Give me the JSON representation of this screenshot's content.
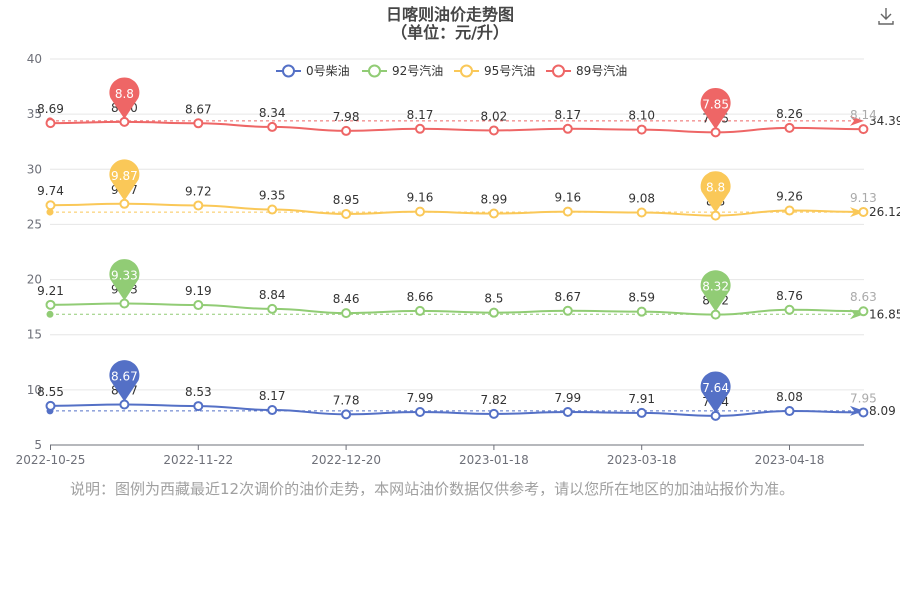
{
  "chart_data": {
    "type": "line",
    "title": "日喀则油价走势图",
    "subtitle": "（单位：元/升）",
    "x_tick_labels": [
      "2022-10-25",
      "2022-11-22",
      "2022-12-20",
      "2023-01-18",
      "2023-03-18",
      "2023-04-18"
    ],
    "y_tick_labels": [
      "5",
      "10",
      "15",
      "20",
      "25",
      "30",
      "35",
      "40"
    ],
    "ylim": [
      5,
      40
    ],
    "grid": true,
    "legend_position": "top",
    "series": [
      {
        "name": "0号柴油",
        "color": "#5470c6",
        "offset": 0,
        "values": [
          8.55,
          8.67,
          8.53,
          8.17,
          7.78,
          7.99,
          7.82,
          7.99,
          7.91,
          7.64,
          8.08,
          7.95
        ],
        "labels": [
          "8.55",
          "8.67",
          "8.53",
          "8.17",
          "7.78",
          "7.99",
          "7.82",
          "7.99",
          "7.91",
          "7.64",
          "8.08",
          "7.95"
        ],
        "max": "8.67",
        "min": "7.64",
        "average": "8.09"
      },
      {
        "name": "92号汽油",
        "color": "#91cc75",
        "offset": 8.5,
        "values": [
          9.21,
          9.33,
          9.19,
          8.84,
          8.46,
          8.66,
          8.5,
          8.67,
          8.59,
          8.32,
          8.76,
          8.63
        ],
        "labels": [
          "9.21",
          "9.33",
          "9.19",
          "8.84",
          "8.46",
          "8.66",
          "8.5",
          "8.67",
          "8.59",
          "8.32",
          "8.76",
          "8.63"
        ],
        "max": "9.33",
        "min": "8.32",
        "average": "16.85"
      },
      {
        "name": "95号汽油",
        "color": "#fac858",
        "offset": 17,
        "values": [
          9.74,
          9.87,
          9.72,
          9.35,
          8.95,
          9.16,
          8.99,
          9.16,
          9.08,
          8.8,
          9.26,
          9.13
        ],
        "labels": [
          "9.74",
          "9.87",
          "9.72",
          "9.35",
          "8.95",
          "9.16",
          "8.99",
          "9.16",
          "9.08",
          "8.8",
          "9.26",
          "9.13"
        ],
        "max": "9.87",
        "min": "8.8",
        "average": "26.12"
      },
      {
        "name": "89号汽油",
        "color": "#ee6666",
        "offset": 25.5,
        "values": [
          8.69,
          8.8,
          8.67,
          8.34,
          7.98,
          8.17,
          8.02,
          8.17,
          8.1,
          7.85,
          8.26,
          8.14
        ],
        "labels": [
          "8.69",
          "8.80",
          "8.67",
          "8.34",
          "7.98",
          "8.17",
          "8.02",
          "8.17",
          "8.10",
          "7.85",
          "8.26",
          "8.14"
        ],
        "max": "8.8",
        "min": "7.85",
        "average": "34.39"
      }
    ]
  },
  "note": "说明：图例为西藏最近12次调价的油价走势，本网站油价数据仅供参考，请以您所在地区的加油站报价为准。",
  "icons": {
    "download": "download-icon"
  }
}
